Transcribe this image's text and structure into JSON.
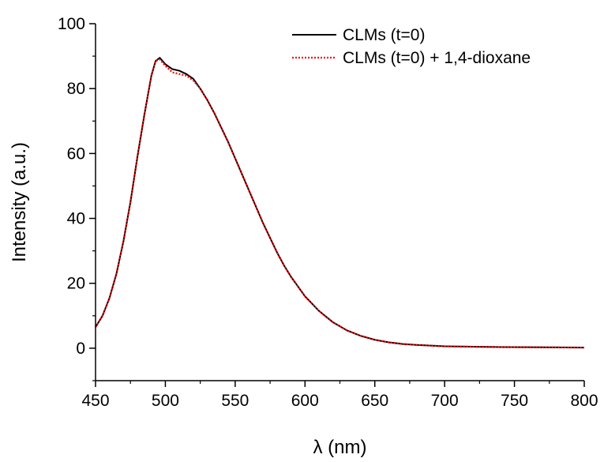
{
  "chart_data": {
    "type": "line",
    "title": "",
    "xlabel": "λ (nm)",
    "ylabel": "Intensity (a.u.)",
    "xlim": [
      450,
      800
    ],
    "ylim": [
      -10,
      100
    ],
    "xticks": [
      450,
      500,
      550,
      600,
      650,
      700,
      750,
      800
    ],
    "yticks": [
      0,
      20,
      40,
      60,
      80,
      100
    ],
    "grid": false,
    "legend_position": "top-right",
    "series": [
      {
        "name": "CLMs (t=0)",
        "color": "#000000",
        "style": "solid",
        "x": [
          450,
          455,
          460,
          465,
          470,
          475,
          480,
          485,
          490,
          493,
          496,
          500,
          505,
          510,
          515,
          520,
          525,
          530,
          535,
          540,
          545,
          550,
          555,
          560,
          565,
          570,
          575,
          580,
          585,
          590,
          595,
          600,
          610,
          620,
          630,
          640,
          650,
          660,
          670,
          680,
          690,
          700,
          720,
          740,
          760,
          780,
          800
        ],
        "y": [
          6.5,
          10,
          15.5,
          23,
          33,
          45,
          59,
          72,
          84,
          88.5,
          89.5,
          87.5,
          86,
          85.5,
          84.5,
          83,
          80,
          76.5,
          72.5,
          68,
          63.5,
          58.5,
          53.5,
          48.5,
          43.5,
          38.5,
          34,
          29.5,
          25.5,
          22,
          19,
          16,
          11.5,
          8,
          5.5,
          3.8,
          2.6,
          1.8,
          1.3,
          1.0,
          0.8,
          0.6,
          0.45,
          0.35,
          0.3,
          0.25,
          0.2
        ]
      },
      {
        "name": "CLMs (t=0) + 1,4-dioxane",
        "color": "#ff0000",
        "style": "dotted",
        "x": [
          450,
          455,
          460,
          465,
          470,
          475,
          480,
          485,
          490,
          493,
          496,
          500,
          505,
          510,
          515,
          520,
          525,
          530,
          535,
          540,
          545,
          550,
          555,
          560,
          565,
          570,
          575,
          580,
          585,
          590,
          595,
          600,
          610,
          620,
          630,
          640,
          650,
          660,
          670,
          680,
          690,
          700,
          720,
          740,
          760,
          780,
          800
        ],
        "y": [
          6.5,
          10,
          15.5,
          23,
          33,
          45,
          59,
          72,
          84,
          88.5,
          89,
          87,
          85,
          84.5,
          84,
          82.5,
          80,
          76.5,
          72.5,
          68,
          63.5,
          58.5,
          53.5,
          48.5,
          43.5,
          38.5,
          34,
          29.5,
          25.5,
          22,
          19,
          16,
          11.5,
          8,
          5.5,
          3.8,
          2.6,
          1.8,
          1.3,
          1.0,
          0.8,
          0.6,
          0.45,
          0.35,
          0.3,
          0.25,
          0.2
        ]
      }
    ]
  }
}
